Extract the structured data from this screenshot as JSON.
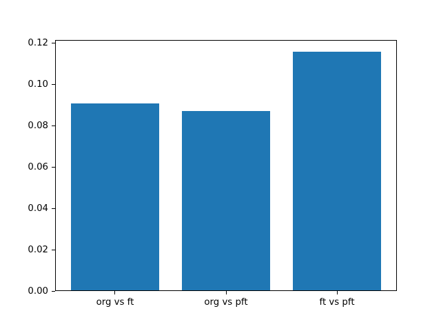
{
  "chart_data": {
    "type": "bar",
    "title": "",
    "categories": [
      "org vs ft",
      "org vs pft",
      "ft vs pft"
    ],
    "values": [
      0.0911,
      0.0874,
      0.116
    ],
    "series_color": "#1f77b4",
    "yticks": [
      "0.00",
      "0.02",
      "0.04",
      "0.06",
      "0.08",
      "0.10",
      "0.12"
    ],
    "ylim": [
      0,
      0.1218
    ],
    "xlabel": "",
    "ylabel": "",
    "grid": false,
    "legend": false,
    "bar_width_fraction": 0.8
  }
}
